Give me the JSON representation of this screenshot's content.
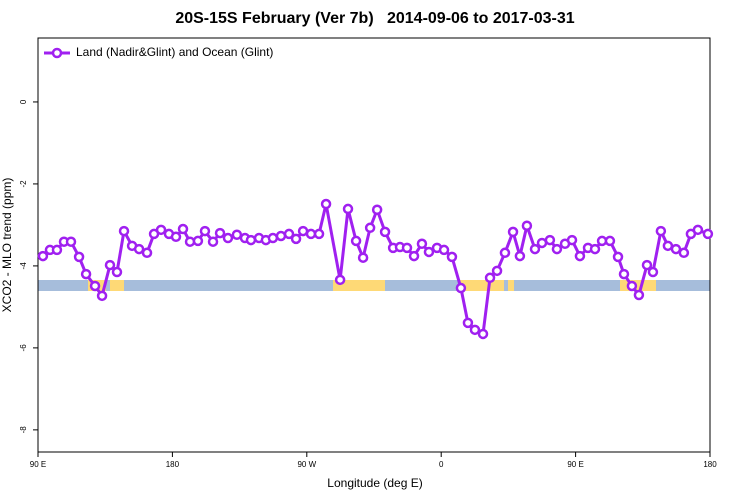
{
  "chart_data": {
    "type": "line",
    "title": "20S-15S February (Ver 7b)   2014-09-06 to 2017-03-31",
    "xlabel": "Longitude (deg E)",
    "ylabel": "XCO2 - MLO trend (ppm)",
    "xlim": [
      90,
      540
    ],
    "ylim": [
      -8.54,
      1.56
    ],
    "xticks": [
      {
        "value": 90,
        "label": "90 E"
      },
      180,
      {
        "value": 270,
        "label": "90 W"
      },
      {
        "value": 360,
        "label": "0"
      },
      {
        "value": 450,
        "label": "90 E"
      },
      {
        "value": 540,
        "label": "180"
      }
    ],
    "yticks": [
      -8,
      -6,
      -4,
      -2,
      0
    ],
    "grid": false,
    "legend": "top-left",
    "x": [
      93.3,
      98.0,
      102.7,
      107.4,
      112.1,
      117.5,
      122.2,
      128.2,
      132.9,
      138.2,
      142.9,
      147.6,
      153.0,
      157.7,
      163.0,
      167.7,
      172.4,
      177.7,
      182.4,
      187.1,
      191.8,
      197.1,
      201.8,
      207.2,
      211.9,
      217.2,
      223.2,
      228.6,
      232.6,
      238.0,
      242.6,
      247.3,
      252.7,
      258.1,
      262.8,
      267.5,
      272.8,
      278.2,
      282.9,
      292.3,
      297.6,
      303.0,
      307.7,
      312.4,
      317.1,
      322.4,
      327.8,
      332.4,
      337.1,
      341.8,
      347.1,
      351.8,
      357.2,
      361.9,
      367.2,
      373.2,
      377.9,
      382.6,
      388.0,
      392.7,
      397.4,
      402.7,
      408.1,
      412.7,
      417.4,
      422.8,
      427.5,
      432.8,
      437.5,
      442.9,
      447.6,
      452.9,
      458.3,
      463.0,
      467.7,
      473.0,
      478.4,
      482.4,
      487.7,
      492.4,
      497.8,
      501.8,
      507.1,
      511.8,
      517.2,
      522.5,
      527.2,
      531.9,
      538.6
    ],
    "series": [
      {
        "name": "Land (Nadir&Glint) and Ocean (Glint)",
        "color": "#a020f0",
        "values": [
          -3.76,
          -3.61,
          -3.61,
          -3.41,
          -3.41,
          -3.78,
          -4.2,
          -4.49,
          -4.73,
          -3.98,
          -4.15,
          -3.15,
          -3.51,
          -3.59,
          -3.68,
          -3.22,
          -3.12,
          -3.22,
          -3.29,
          -3.1,
          -3.41,
          -3.39,
          -3.15,
          -3.41,
          -3.2,
          -3.32,
          -3.24,
          -3.32,
          -3.37,
          -3.32,
          -3.37,
          -3.32,
          -3.27,
          -3.22,
          -3.34,
          -3.15,
          -3.22,
          -3.22,
          -2.49,
          -4.34,
          -2.61,
          -3.39,
          -3.8,
          -3.07,
          -2.63,
          -3.17,
          -3.56,
          -3.54,
          -3.56,
          -3.76,
          -3.46,
          -3.66,
          -3.56,
          -3.61,
          -3.78,
          -4.54,
          -5.39,
          -5.56,
          -5.66,
          -4.29,
          -4.12,
          -3.68,
          -3.17,
          -3.76,
          -3.02,
          -3.59,
          -3.44,
          -3.37,
          -3.59,
          -3.46,
          -3.37,
          -3.76,
          -3.56,
          -3.59,
          -3.39,
          -3.39,
          -3.78,
          -4.2,
          -4.49,
          -4.71,
          -3.98,
          -4.15,
          -3.15,
          -3.51,
          -3.59,
          -3.68,
          -3.22,
          -3.12,
          -3.22
        ]
      }
    ]
  }
}
